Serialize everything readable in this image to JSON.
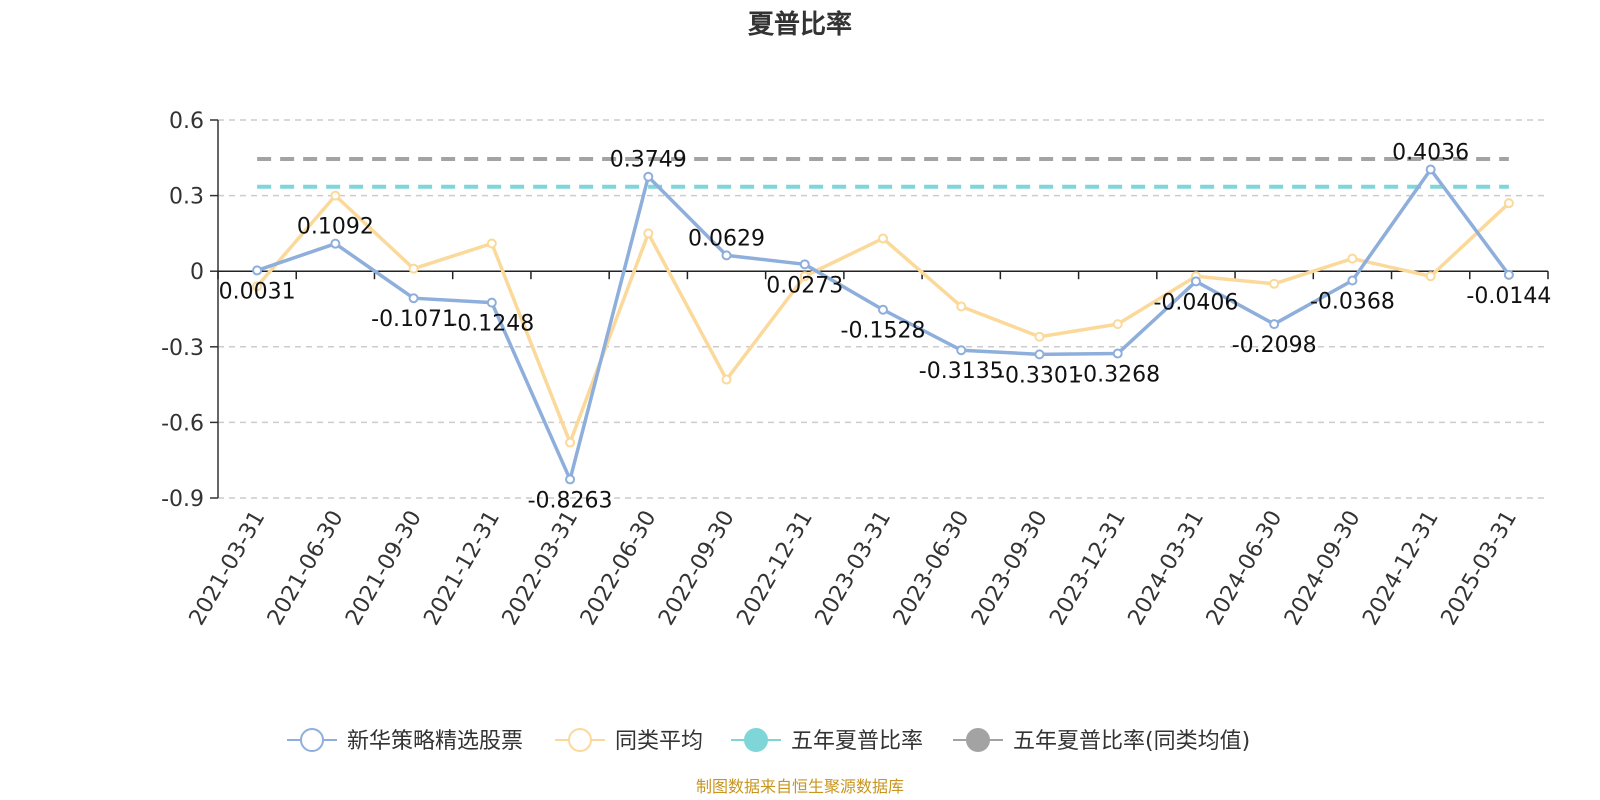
{
  "chart_data": {
    "type": "line",
    "title": "夏普比率",
    "categories": [
      "2021-03-31",
      "2021-06-30",
      "2021-09-30",
      "2021-12-31",
      "2022-03-31",
      "2022-06-30",
      "2022-09-30",
      "2022-12-31",
      "2023-03-31",
      "2023-06-30",
      "2023-09-30",
      "2023-12-31",
      "2024-03-31",
      "2024-06-30",
      "2024-09-30",
      "2024-12-31",
      "2025-03-31"
    ],
    "yticks": [
      0.6,
      0.3,
      0,
      -0.3,
      -0.6,
      -0.9
    ],
    "ylim": [
      -0.9,
      0.6
    ],
    "grid": true,
    "legend_position": "bottom",
    "series": [
      {
        "name": "新华策略精选股票",
        "color": "#8eaedb",
        "values": [
          0.0031,
          0.1092,
          -0.1071,
          -0.1248,
          -0.8263,
          0.3749,
          0.0629,
          0.0273,
          -0.1528,
          -0.3135,
          -0.3301,
          -0.3268,
          -0.0406,
          -0.2098,
          -0.0368,
          0.4036,
          -0.0144
        ],
        "labels": [
          "0.0031",
          "0.1092",
          "-0.1071",
          "-0.1248",
          "-0.8263",
          "0.3749",
          "0.0629",
          "0.0273",
          "-0.1528",
          "-0.3135",
          "-0.3301",
          "-0.3268",
          "-0.0406",
          "-0.2098",
          "-0.0368",
          "0.4036",
          "-0.0144"
        ]
      },
      {
        "name": "同类平均",
        "color": "#fbd99a",
        "values": [
          -0.06,
          0.3,
          0.01,
          0.11,
          -0.68,
          0.15,
          -0.43,
          -0.02,
          0.13,
          -0.14,
          -0.26,
          -0.21,
          -0.02,
          -0.05,
          0.05,
          -0.02,
          0.27
        ]
      }
    ],
    "reference_lines": [
      {
        "name": "五年夏普比率",
        "color": "#7fd6d8",
        "value": 0.335
      },
      {
        "name": "五年夏普比率(同类均值)",
        "color": "#a3a3a3",
        "value": 0.445
      }
    ],
    "source": "制图数据来自恒生聚源数据库"
  }
}
